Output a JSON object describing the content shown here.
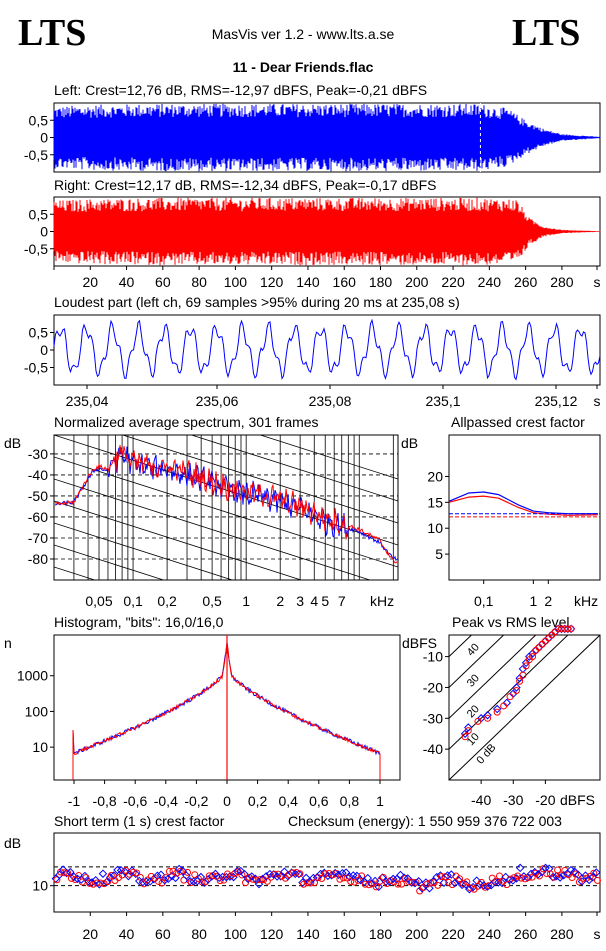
{
  "header": {
    "logo_left": "LTS",
    "logo_right": "LTS",
    "app_title": "MasVis ver 1.2 - www.lts.a.se",
    "file_title": "11 - Dear Friends.flac"
  },
  "colors": {
    "left": "#0000ff",
    "right": "#ff0000",
    "axis": "#000000"
  },
  "chart_data": [
    {
      "id": "left_waveform",
      "type": "area",
      "title": "Left: Crest=12,76 dB, RMS=-12,97 dBFS, Peak=-0,21 dBFS",
      "ylim": [
        -1,
        1
      ],
      "yticks": [
        "0,5",
        "0",
        "-0,5"
      ],
      "xlim": [
        0,
        301
      ],
      "envelope": [
        [
          0,
          0.9
        ],
        [
          20,
          0.95
        ],
        [
          60,
          0.98
        ],
        [
          120,
          0.98
        ],
        [
          180,
          0.98
        ],
        [
          235,
          0.98
        ],
        [
          250,
          0.85
        ],
        [
          260,
          0.5
        ],
        [
          270,
          0.25
        ],
        [
          280,
          0.1
        ],
        [
          301,
          0.02
        ]
      ],
      "marker_x": 235.08
    },
    {
      "id": "right_waveform",
      "type": "area",
      "title": "Right: Crest=12,17 dB, RMS=-12,34 dBFS, Peak=-0,17 dBFS",
      "ylim": [
        -1,
        1
      ],
      "yticks": [
        "0,5",
        "0",
        "-0,5"
      ],
      "xlim": [
        0,
        301
      ],
      "xticks": [
        "20",
        "40",
        "60",
        "80",
        "100",
        "120",
        "140",
        "160",
        "180",
        "200",
        "220",
        "240",
        "260",
        "280",
        "s"
      ],
      "envelope": [
        [
          0,
          0.9
        ],
        [
          20,
          0.95
        ],
        [
          60,
          0.98
        ],
        [
          120,
          0.98
        ],
        [
          180,
          0.98
        ],
        [
          235,
          0.98
        ],
        [
          255,
          0.95
        ],
        [
          262,
          0.4
        ],
        [
          270,
          0.15
        ],
        [
          280,
          0.05
        ],
        [
          301,
          0.01
        ]
      ]
    },
    {
      "id": "loudest_part",
      "type": "line",
      "title": "Loudest part (left  ch, 69 samples >95% during 20 ms at 235,08 s)",
      "ylim": [
        -1,
        1
      ],
      "yticks": [
        "0,5",
        "0",
        "-0,5"
      ],
      "xlim": [
        235.03,
        235.13
      ],
      "xticks": [
        "235,04",
        "235,06",
        "235,08",
        "235,1",
        "235,12",
        "s"
      ]
    },
    {
      "id": "avg_spectrum",
      "type": "line",
      "title": "Normalized average spectrum, 301 frames",
      "ylabel": "dB",
      "yticks": [
        "-30",
        "-40",
        "-50",
        "-60",
        "-70",
        "-80"
      ],
      "xlabel": "kHz",
      "xticks": [
        "0,05",
        "0,1",
        "0,2",
        "0,5",
        "1",
        "2",
        "3",
        "4",
        "5",
        "7"
      ],
      "left": [
        [
          0.02,
          -54
        ],
        [
          0.03,
          -53
        ],
        [
          0.04,
          -42
        ],
        [
          0.045,
          -38
        ],
        [
          0.05,
          -37
        ],
        [
          0.06,
          -38
        ],
        [
          0.07,
          -33
        ],
        [
          0.08,
          -30
        ],
        [
          0.1,
          -35
        ],
        [
          0.12,
          -36
        ],
        [
          0.15,
          -37
        ],
        [
          0.2,
          -37
        ],
        [
          0.3,
          -40
        ],
        [
          0.5,
          -44
        ],
        [
          0.7,
          -47
        ],
        [
          1,
          -49
        ],
        [
          1.5,
          -51
        ],
        [
          2,
          -53
        ],
        [
          3,
          -56
        ],
        [
          4,
          -59
        ],
        [
          5,
          -62
        ],
        [
          7,
          -64
        ],
        [
          10,
          -67
        ],
        [
          15,
          -72
        ],
        [
          20,
          -80
        ]
      ],
      "right": [
        [
          0.02,
          -54
        ],
        [
          0.03,
          -53
        ],
        [
          0.04,
          -41
        ],
        [
          0.045,
          -37
        ],
        [
          0.05,
          -36
        ],
        [
          0.06,
          -37
        ],
        [
          0.07,
          -32
        ],
        [
          0.08,
          -29
        ],
        [
          0.1,
          -34
        ],
        [
          0.12,
          -35
        ],
        [
          0.15,
          -36
        ],
        [
          0.2,
          -36
        ],
        [
          0.3,
          -39
        ],
        [
          0.5,
          -43
        ],
        [
          0.7,
          -46
        ],
        [
          1,
          -48
        ],
        [
          1.5,
          -50
        ],
        [
          2,
          -52
        ],
        [
          3,
          -55
        ],
        [
          4,
          -58
        ],
        [
          5,
          -61
        ],
        [
          7,
          -63
        ],
        [
          10,
          -66
        ],
        [
          15,
          -71
        ],
        [
          20,
          -81
        ]
      ]
    },
    {
      "id": "allpassed_crest",
      "type": "line",
      "title": "Allpassed crest factor",
      "ylabel": "dB",
      "ylim": [
        0,
        28
      ],
      "yticks": [
        "20",
        "15",
        "10",
        "5"
      ],
      "xlabel": "kHz",
      "xticks": [
        "0,1",
        "1",
        "2"
      ],
      "left": [
        [
          0.02,
          15.2
        ],
        [
          0.05,
          16.8
        ],
        [
          0.1,
          17.0
        ],
        [
          0.2,
          16.5
        ],
        [
          0.5,
          14.5
        ],
        [
          1,
          13.3
        ],
        [
          2,
          13.0
        ],
        [
          5,
          12.8
        ],
        [
          20,
          12.8
        ]
      ],
      "right": [
        [
          0.02,
          15.0
        ],
        [
          0.05,
          16.0
        ],
        [
          0.1,
          16.2
        ],
        [
          0.2,
          15.8
        ],
        [
          0.5,
          14.0
        ],
        [
          1,
          13.0
        ],
        [
          2,
          12.7
        ],
        [
          5,
          12.5
        ],
        [
          20,
          12.6
        ]
      ],
      "left_ref": 12.8,
      "right_ref": 12.2
    },
    {
      "id": "histogram",
      "type": "line",
      "title": "Histogram, \"bits\": 16,0/16,0",
      "ylabel": "n",
      "yticks": [
        "1000",
        "100",
        "10"
      ],
      "xticks": [
        "-1",
        "-0,8",
        "-0,6",
        "-0,4",
        "-0,2",
        "0",
        "0,2",
        "0,4",
        "0,6",
        "0,8",
        "1"
      ],
      "peak_center": 1500,
      "edge_value": 8
    },
    {
      "id": "peak_vs_rms",
      "type": "scatter",
      "title": "Peak vs RMS level",
      "ylabel": "dBFS",
      "xlabel": "dBFS",
      "yticks": [
        "-10",
        "-20",
        "-30",
        "-40"
      ],
      "xticks": [
        "-40",
        "-30",
        "-20"
      ],
      "diagonal_labels": [
        "40",
        "30",
        "20",
        "10",
        "0 dB"
      ],
      "left": [
        [
          -45,
          -35
        ],
        [
          -44,
          -33
        ],
        [
          -40,
          -30
        ],
        [
          -38,
          -29
        ],
        [
          -35,
          -27
        ],
        [
          -32,
          -25
        ],
        [
          -30,
          -22
        ],
        [
          -29,
          -20
        ],
        [
          -28,
          -17
        ],
        [
          -27,
          -14
        ],
        [
          -26,
          -12
        ],
        [
          -25,
          -10
        ],
        [
          -24,
          -9
        ],
        [
          -23,
          -8
        ],
        [
          -22,
          -7
        ],
        [
          -21,
          -6
        ],
        [
          -20,
          -5
        ],
        [
          -19,
          -4
        ],
        [
          -18,
          -3
        ],
        [
          -17,
          -2
        ],
        [
          -16,
          -1
        ],
        [
          -15,
          -1
        ],
        [
          -14,
          -1
        ],
        [
          -13,
          -1
        ],
        [
          -12,
          -1
        ]
      ],
      "right": [
        [
          -45,
          -36
        ],
        [
          -44,
          -34
        ],
        [
          -41,
          -31
        ],
        [
          -38,
          -30
        ],
        [
          -35,
          -28
        ],
        [
          -33,
          -26
        ],
        [
          -31,
          -23
        ],
        [
          -29,
          -21
        ],
        [
          -28,
          -18
        ],
        [
          -27,
          -16
        ],
        [
          -26,
          -13
        ],
        [
          -25,
          -11
        ],
        [
          -24,
          -10
        ],
        [
          -23,
          -8
        ],
        [
          -22,
          -7
        ],
        [
          -21,
          -6
        ],
        [
          -20,
          -5
        ],
        [
          -19,
          -4
        ],
        [
          -18,
          -3
        ],
        [
          -17,
          -2
        ],
        [
          -16,
          -1
        ],
        [
          -15,
          -1
        ],
        [
          -14,
          -1
        ],
        [
          -13,
          -1
        ],
        [
          -12,
          -1
        ]
      ]
    },
    {
      "id": "short_term_crest",
      "type": "scatter",
      "title": "Short term (1 s) crest factor",
      "checksum": "Checksum (energy):  1 550 959 376 722 003",
      "ylabel": "dB",
      "ytick": "10",
      "xticks": [
        "20",
        "40",
        "60",
        "80",
        "100",
        "120",
        "140",
        "160",
        "180",
        "200",
        "220",
        "240",
        "260",
        "280",
        "s"
      ]
    }
  ]
}
